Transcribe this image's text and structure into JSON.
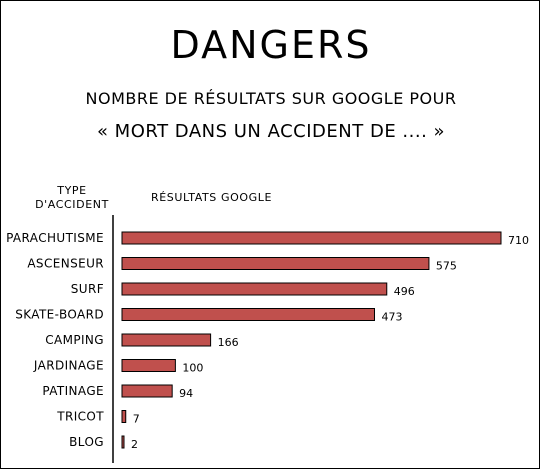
{
  "chart_data": {
    "type": "bar",
    "orientation": "horizontal",
    "title": "DANGERS",
    "subtitle": "NOMBRE DE RÉSULTATS SUR GOOGLE POUR",
    "subtitle2": "« MORT DANS UN ACCIDENT DE .... »",
    "category_header_line1": "TYPE",
    "category_header_line2": "D'ACCIDENT",
    "value_header": "RÉSULTATS GOOGLE",
    "categories": [
      "PARACHUTISME",
      "ASCENSEUR",
      "SURF",
      "SKATE-BOARD",
      "CAMPING",
      "JARDINAGE",
      "PATINAGE",
      "TRICOT",
      "BLOG"
    ],
    "values": [
      710,
      575,
      496,
      473,
      166,
      100,
      94,
      7,
      2
    ],
    "value_labels": [
      "710",
      "575",
      "496",
      "473",
      "166",
      "100",
      "94",
      "7",
      "2"
    ],
    "xlim": [
      0,
      710
    ],
    "grid": false,
    "bar_color": "#c0504d"
  }
}
